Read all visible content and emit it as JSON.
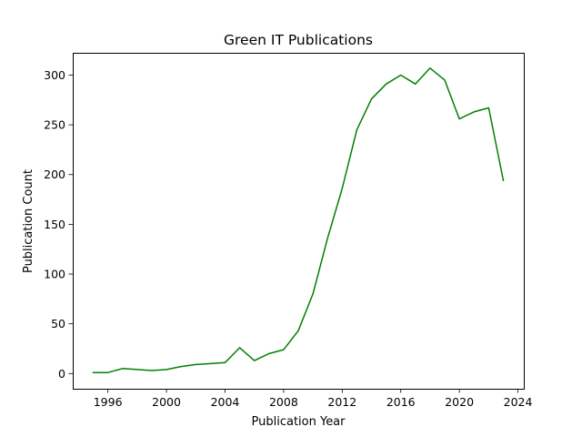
{
  "chart_data": {
    "type": "line",
    "title": "Green IT Publications",
    "xlabel": "Publication Year",
    "ylabel": "Publication Count",
    "xlim": [
      1993.6,
      2024.4
    ],
    "ylim": [
      -15.3,
      322.4
    ],
    "xticks": [
      1996,
      2000,
      2004,
      2008,
      2012,
      2016,
      2020,
      2024
    ],
    "yticks": [
      0,
      50,
      100,
      150,
      200,
      250,
      300
    ],
    "grid": false,
    "series": [
      {
        "color": "#008000",
        "x": [
          1995,
          1996,
          1997,
          1998,
          1999,
          2000,
          2001,
          2002,
          2003,
          2004,
          2005,
          2006,
          2007,
          2008,
          2009,
          2010,
          2011,
          2012,
          2013,
          2014,
          2015,
          2016,
          2017,
          2018,
          2019,
          2020,
          2021,
          2022,
          2023
        ],
        "y": [
          1,
          1,
          5,
          4,
          3,
          4,
          7,
          9,
          10,
          11,
          26,
          13,
          20,
          24,
          43,
          80,
          136,
          186,
          245,
          276,
          291,
          300,
          291,
          307,
          295,
          256,
          263,
          267,
          194
        ]
      }
    ]
  }
}
